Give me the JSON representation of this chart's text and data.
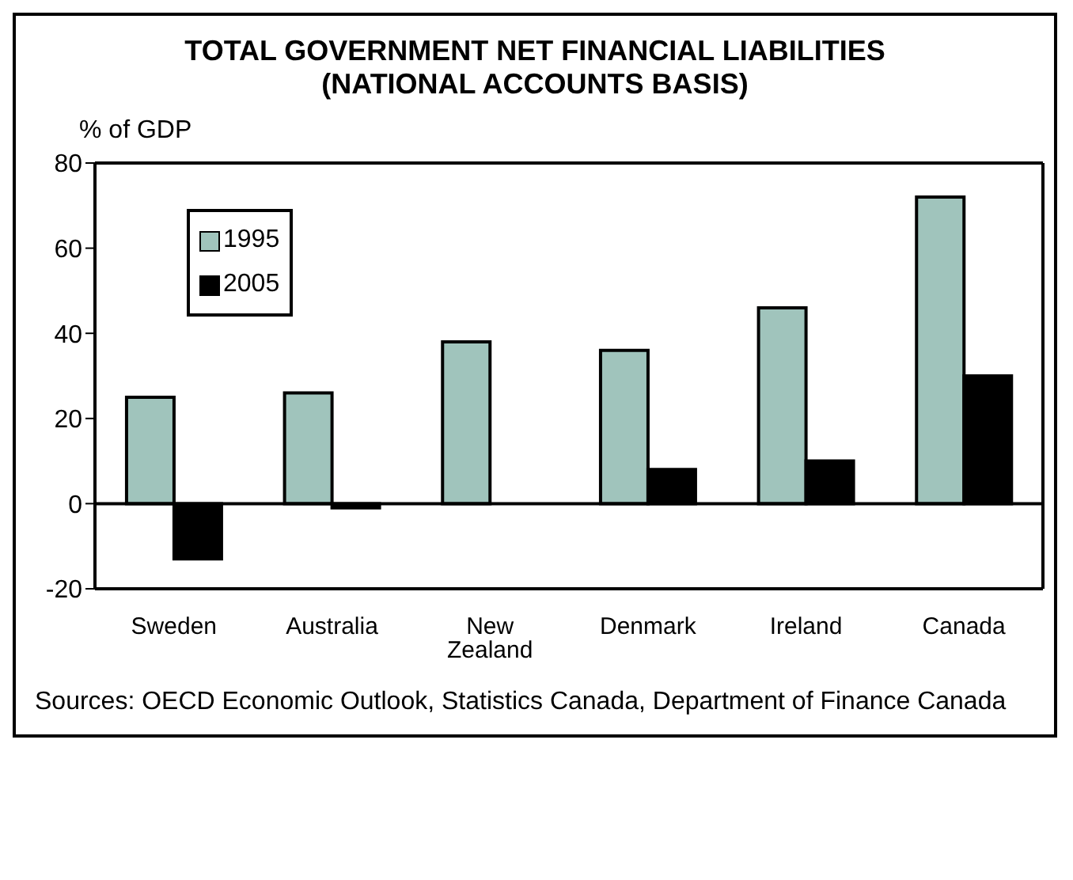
{
  "chart_data": {
    "type": "bar",
    "title": "TOTAL GOVERNMENT NET FINANCIAL LIABILITIES (NATIONAL ACCOUNTS BASIS)",
    "ylabel": "% of GDP",
    "categories": [
      "Sweden",
      "Australia",
      "New Zealand",
      "Denmark",
      "Ireland",
      "Canada"
    ],
    "series": [
      {
        "name": "1995",
        "color": "#a0c4bc",
        "values": [
          25,
          26,
          38,
          36,
          46,
          72
        ]
      },
      {
        "name": "2005",
        "color": "#000000",
        "values": [
          -13,
          -1,
          null,
          8,
          10,
          30
        ]
      }
    ],
    "ylim": [
      -20,
      80
    ],
    "yticks": [
      -20,
      0,
      20,
      40,
      60,
      80
    ],
    "legend": "top left",
    "annotations": [
      "Sources: OECD Economic Outlook, Statistics Canada, Department of Finance Canada"
    ]
  }
}
